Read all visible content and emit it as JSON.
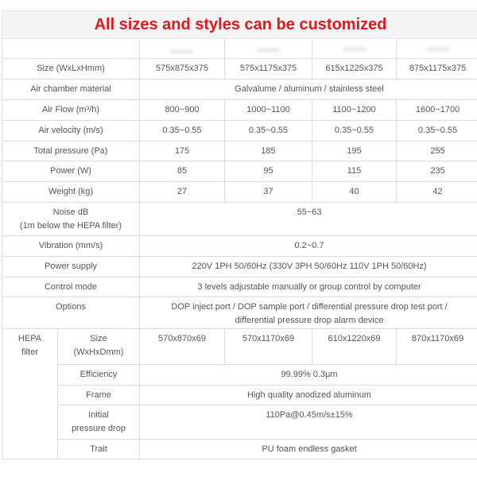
{
  "title": "All sizes and styles can be customized",
  "rows": {
    "size": {
      "label": "Size (WxLxHmm)",
      "values": [
        "575x875x375",
        "575x1175x375",
        "615x1225x375",
        "875x1175x375"
      ]
    },
    "air_chamber": {
      "label": "Air chamber material",
      "value": "Galvalume / aluminum / stainless steel"
    },
    "air_flow": {
      "label": "Air Flow (m³/h)",
      "values": [
        "800~900",
        "1000~1100",
        "1100~1200",
        "1600~1700"
      ]
    },
    "air_velocity": {
      "label": "Air velocity (m/s)",
      "values": [
        "0.35~0.55",
        "0.35~0.55",
        "0.35~0.55",
        "0.35~0.55"
      ]
    },
    "total_pressure": {
      "label": "Total pressure (Pa)",
      "values": [
        "175",
        "185",
        "195",
        "255"
      ]
    },
    "power": {
      "label": "Power (W)",
      "values": [
        "85",
        "95",
        "115",
        "235"
      ]
    },
    "weight": {
      "label": "Weight (kg)",
      "values": [
        "27",
        "37",
        "40",
        "42"
      ]
    },
    "noise": {
      "label_line1": "Noise dB",
      "label_line2": "(1m below the HEPA filter)",
      "value": "55~63"
    },
    "vibration": {
      "label": "Vibration (mm/s)",
      "value": "0.2~0.7"
    },
    "power_supply": {
      "label": "Power supply",
      "value": "220V 1PH 50/60Hz (330V 3PH 50/60Hz 110V 1PH 50/60Hz)"
    },
    "control_mode": {
      "label": "Control mode",
      "value": "3 levels adjustable manually or group control by computer"
    },
    "options": {
      "label": "Options",
      "value_line1": "DOP inject port / DOP sample port / differential pressure drop test port /",
      "value_line2": "differential pressure drop alarm device"
    }
  },
  "hepa": {
    "label_line1": "HEPA",
    "label_line2": "filter",
    "size": {
      "label_line1": "Size",
      "label_line2": "(WxHxDmm)",
      "values": [
        "570x870x69",
        "570x1170x69",
        "610x1220x69",
        "870x1170x69"
      ]
    },
    "efficiency": {
      "label": "Efficiency",
      "value": "99.99% 0.3μm"
    },
    "frame": {
      "label": "Frame",
      "value": "High quality anodized aluminum"
    },
    "initial_pressure_drop": {
      "label_line1": "Initial",
      "label_line2": "pressure drop",
      "value": "110Pa@0.45m/s±15%"
    },
    "trait": {
      "label": "Trait",
      "value": "PU foam endless gasket"
    }
  },
  "colors": {
    "title": "#e3161b",
    "title_bg": "#f4f4f4",
    "border": "#dcdcdc",
    "text": "#555555"
  }
}
